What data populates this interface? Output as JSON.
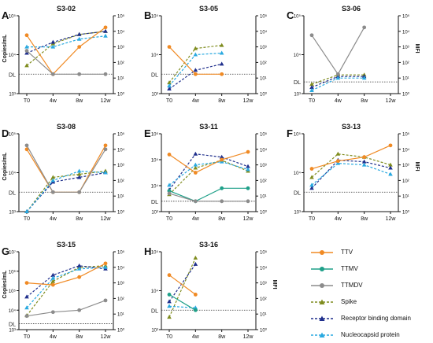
{
  "figure": {
    "time_labels": [
      "T0",
      "4w",
      "8w",
      "12w"
    ],
    "dl_label": "DL",
    "left_axis_label": "Copies/mL",
    "right_axis_label": "MFI"
  },
  "series": [
    {
      "key": "ttv",
      "name": "TTV",
      "color": "#f08a24",
      "dashed": false,
      "marker": "circle"
    },
    {
      "key": "ttmv",
      "name": "TTMV",
      "color": "#1fa089",
      "dashed": false,
      "marker": "circle"
    },
    {
      "key": "ttmdv",
      "name": "TTMDV",
      "color": "#8c8c8c",
      "dashed": false,
      "marker": "circle"
    },
    {
      "key": "spike",
      "name": "Spike",
      "color": "#7f8c1e",
      "dashed": true,
      "marker": "triangle"
    },
    {
      "key": "rbd",
      "name": "Receptor binding domain",
      "color": "#1f2f8c",
      "dashed": true,
      "marker": "triangle"
    },
    {
      "key": "ncp",
      "name": "Nucleocapsid protein",
      "color": "#29a9e0",
      "dashed": true,
      "marker": "triangle"
    }
  ],
  "chart_data": [
    {
      "letter": "A",
      "title": "S3-02",
      "type": "line",
      "left_ticks": [
        "10³",
        "10⁴",
        "10⁵"
      ],
      "left_log_range": [
        3,
        5
      ],
      "dl_log": 3.5,
      "right_ticks": [
        "10⁰",
        "10¹",
        "10²",
        "10³",
        "10⁴",
        "10⁵"
      ],
      "right_log_range": [
        0,
        5
      ],
      "show_left_label": true,
      "show_right_label": false,
      "x": [
        0,
        1,
        2,
        3
      ],
      "copies": {
        "ttv": [
          4.5,
          3.5,
          4.2,
          4.7
        ],
        "ttmdv": [
          4.1,
          3.5,
          3.5,
          3.5
        ]
      },
      "mfi": {
        "spike": [
          1.8,
          3.2,
          3.8,
          4.0
        ],
        "rbd": [
          2.6,
          3.3,
          3.8,
          4.0
        ],
        "ncp": [
          3.0,
          3.0,
          3.5,
          3.7
        ]
      }
    },
    {
      "letter": "B",
      "title": "S3-05",
      "type": "line",
      "left_ticks": [
        "10³",
        "10⁴",
        "10⁵"
      ],
      "left_log_range": [
        3,
        5
      ],
      "dl_log": 3.5,
      "right_ticks": [
        "10⁰",
        "10¹",
        "10²",
        "10³",
        "10⁴",
        "10⁵"
      ],
      "right_log_range": [
        0,
        5
      ],
      "show_left_label": false,
      "show_right_label": false,
      "x": [
        0,
        1,
        2
      ],
      "copies": {
        "ttv": [
          4.2,
          3.5,
          3.5
        ]
      },
      "mfi": {
        "spike": [
          0.7,
          2.9,
          3.1
        ],
        "rbd": [
          0.3,
          1.5,
          1.9
        ],
        "ncp": [
          0.5,
          2.5,
          2.6
        ]
      }
    },
    {
      "letter": "C",
      "title": "S3-06",
      "type": "line",
      "left_ticks": [
        "10³",
        "10⁴",
        "10⁵"
      ],
      "left_log_range": [
        3,
        5
      ],
      "dl_log": 3.3,
      "right_ticks": [
        "10⁰",
        "10¹",
        "10²",
        "10³",
        "10⁴",
        "10⁵"
      ],
      "right_log_range": [
        0,
        5
      ],
      "show_left_label": false,
      "show_right_label": true,
      "x": [
        0,
        1,
        2
      ],
      "copies": {
        "ttmdv": [
          4.5,
          3.5,
          4.7
        ]
      },
      "mfi": {
        "spike": [
          0.6,
          1.2,
          1.2
        ],
        "rbd": [
          0.4,
          1.1,
          1.1
        ],
        "ncp": [
          0.2,
          1.0,
          1.0
        ]
      }
    },
    {
      "letter": "D",
      "title": "S3-08",
      "type": "line",
      "left_ticks": [
        "10³",
        "10⁴",
        "10⁵"
      ],
      "left_log_range": [
        3,
        5
      ],
      "dl_log": 3.5,
      "right_ticks": [
        "10⁰",
        "10¹",
        "10²",
        "10³",
        "10⁴",
        "10⁵"
      ],
      "right_log_range": [
        0,
        5
      ],
      "show_left_label": true,
      "show_right_label": false,
      "x": [
        0,
        1,
        2,
        3
      ],
      "copies": {
        "ttv": [
          4.6,
          3.5,
          3.5,
          4.7
        ],
        "ttmdv": [
          4.7,
          3.5,
          3.5,
          4.6
        ]
      },
      "mfi": {
        "spike": [
          0.0,
          2.2,
          2.4,
          2.6
        ],
        "rbd": [
          0.0,
          1.9,
          2.2,
          2.5
        ],
        "ncp": [
          0.0,
          2.0,
          2.6,
          2.5
        ]
      }
    },
    {
      "letter": "E",
      "title": "S3-11",
      "type": "line",
      "left_ticks": [
        "10³",
        "10⁴",
        "10⁵",
        "10⁶"
      ],
      "left_log_range": [
        3,
        6
      ],
      "dl_log": 3.4,
      "right_ticks": [
        "10⁰",
        "10¹",
        "10²",
        "10³",
        "10⁴",
        "10⁵"
      ],
      "right_log_range": [
        0,
        5
      ],
      "show_left_label": false,
      "show_right_label": false,
      "x": [
        0,
        1,
        2,
        3
      ],
      "copies": {
        "ttv": [
          5.2,
          4.5,
          5.0,
          5.3
        ],
        "ttmv": [
          3.8,
          3.4,
          3.9,
          3.9
        ],
        "ttmdv": [
          3.7,
          3.4,
          3.4,
          3.4
        ]
      },
      "mfi": {
        "spike": [
          1.1,
          2.8,
          3.3,
          2.6
        ],
        "rbd": [
          1.4,
          3.7,
          3.5,
          2.9
        ],
        "ncp": [
          1.7,
          3.0,
          3.2,
          2.7
        ]
      }
    },
    {
      "letter": "F",
      "title": "S3-13",
      "type": "line",
      "left_ticks": [
        "10³",
        "10⁴",
        "10⁵"
      ],
      "left_log_range": [
        3,
        5
      ],
      "dl_log": 3.5,
      "right_ticks": [
        "10⁰",
        "10¹",
        "10²",
        "10³",
        "10⁴",
        "10⁵"
      ],
      "right_log_range": [
        0,
        5
      ],
      "show_left_label": false,
      "show_right_label": true,
      "x": [
        0,
        1,
        2,
        3
      ],
      "copies": {
        "ttv": [
          4.1,
          4.3,
          4.4,
          4.7
        ]
      },
      "mfi": {
        "spike": [
          2.2,
          3.7,
          3.5,
          3.0
        ],
        "rbd": [
          1.5,
          3.3,
          3.2,
          2.8
        ],
        "ncp": [
          1.7,
          3.1,
          3.0,
          2.4
        ]
      }
    },
    {
      "letter": "G",
      "title": "S3-15",
      "type": "line",
      "left_ticks": [
        "10³",
        "10⁴",
        "10⁵",
        "10⁶",
        "10⁷"
      ],
      "left_log_range": [
        3,
        7
      ],
      "dl_log": 3.3,
      "right_ticks": [
        "10⁰",
        "10¹",
        "10²",
        "10³",
        "10⁴",
        "10⁵"
      ],
      "right_log_range": [
        0,
        5
      ],
      "show_left_label": true,
      "show_right_label": false,
      "x": [
        0,
        1,
        2,
        3
      ],
      "copies": {
        "ttv": [
          5.4,
          5.3,
          5.7,
          6.4
        ],
        "ttmdv": [
          3.7,
          3.9,
          4.0,
          4.5
        ]
      },
      "mfi": {
        "spike": [
          0.9,
          3.1,
          4.0,
          4.1
        ],
        "rbd": [
          2.1,
          3.5,
          4.1,
          3.9
        ],
        "ncp": [
          1.4,
          3.3,
          3.9,
          4.0
        ]
      }
    },
    {
      "letter": "H",
      "title": "S3-16",
      "type": "line",
      "left_ticks": [
        "10³",
        "10⁴",
        "10⁵"
      ],
      "left_log_range": [
        3,
        5
      ],
      "dl_log": 3.5,
      "right_ticks": [
        "10⁰",
        "10¹",
        "10²",
        "10³",
        "10⁴",
        "10⁵"
      ],
      "right_log_range": [
        0,
        5
      ],
      "show_left_label": false,
      "show_right_label": true,
      "x": [
        0,
        1
      ],
      "copies": {
        "ttv": [
          4.4,
          3.9
        ],
        "ttmv": [
          3.9,
          3.5
        ]
      },
      "mfi": {
        "spike": [
          0.8,
          4.6
        ],
        "rbd": [
          1.8,
          4.2
        ],
        "ncp": [
          1.5,
          1.4
        ]
      }
    }
  ]
}
